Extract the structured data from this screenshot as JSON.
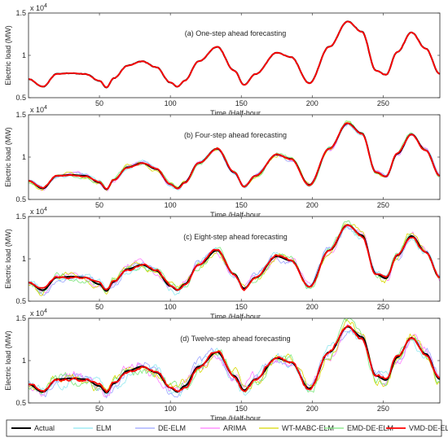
{
  "chart_data": [
    {
      "type": "line",
      "title": "(a) One-step ahead forecasting",
      "xlabel": "Time /Half-hour",
      "ylabel": "Electric load (MW)",
      "exponent_label": "x 10^4",
      "xlim": [
        0,
        290
      ],
      "ylim": [
        0.5,
        1.5
      ],
      "xticks": [
        50,
        100,
        150,
        200,
        250
      ],
      "yticks": [
        0.5,
        1,
        1.5
      ],
      "ytick_labels": [
        "0.5",
        "1",
        "1.5"
      ],
      "spread": 0.004
    },
    {
      "type": "line",
      "title": "(b) Four-step ahead forecasting",
      "xlabel": "Time /Half-hour",
      "ylabel": "Electric load (MW)",
      "exponent_label": "x 10^4",
      "xlim": [
        0,
        290
      ],
      "ylim": [
        0.5,
        1.5
      ],
      "xticks": [
        50,
        100,
        150,
        200,
        250
      ],
      "yticks": [
        0.5,
        1,
        1.5
      ],
      "ytick_labels": [
        "0.5",
        "1",
        "1.5"
      ],
      "spread": 0.03
    },
    {
      "type": "line",
      "title": "(c) Eight-step ahead forecasting",
      "xlabel": "Time /Half-hour",
      "ylabel": "Electric load (MW)",
      "exponent_label": "x 10^4",
      "xlim": [
        0,
        290
      ],
      "ylim": [
        0.5,
        1.5
      ],
      "xticks": [
        50,
        100,
        150,
        200,
        250
      ],
      "yticks": [
        0.5,
        1,
        1.5
      ],
      "ytick_labels": [
        "0.5",
        "1",
        "1.5"
      ],
      "spread": 0.06
    },
    {
      "type": "line",
      "title": "(d) Twelve-step ahead forecasting",
      "xlabel": "Time /Half-hour",
      "ylabel": "Electric load (MW)",
      "exponent_label": "x 10^4",
      "xlim": [
        0,
        290
      ],
      "ylim": [
        0.5,
        1.5
      ],
      "xticks": [
        50,
        100,
        150,
        200,
        250
      ],
      "yticks": [
        0.5,
        1,
        1.5
      ],
      "ytick_labels": [
        "0.5",
        "1",
        "1.5"
      ],
      "spread": 0.09
    }
  ],
  "actual_load_x104": {
    "x": [
      0,
      10,
      20,
      30,
      40,
      50,
      55,
      60,
      70,
      80,
      90,
      100,
      105,
      110,
      120,
      133,
      145,
      152,
      160,
      175,
      185,
      198,
      212,
      225,
      235,
      245,
      252,
      260,
      270,
      280,
      290
    ],
    "y": [
      0.72,
      0.63,
      0.78,
      0.79,
      0.78,
      0.7,
      0.62,
      0.73,
      0.88,
      0.93,
      0.86,
      0.68,
      0.63,
      0.7,
      0.93,
      1.1,
      0.82,
      0.65,
      0.78,
      1.03,
      0.98,
      0.67,
      1.1,
      1.4,
      1.28,
      0.82,
      0.77,
      1.04,
      1.27,
      1.08,
      0.78
    ]
  },
  "series": [
    {
      "name": "Actual",
      "color": "#000000",
      "width": 2.0
    },
    {
      "name": "ELM",
      "color": "#8ee8f0",
      "width": 0.8
    },
    {
      "name": "DE-ELM",
      "color": "#9aa4ff",
      "width": 0.8
    },
    {
      "name": "ARIMA",
      "color": "#ff7cff",
      "width": 0.8
    },
    {
      "name": "WT-MABC-ELM",
      "color": "#d8d800",
      "width": 0.8
    },
    {
      "name": "EMD-DE-ELM",
      "color": "#7ce87c",
      "width": 0.8
    },
    {
      "name": "VMD-DE-ELM",
      "color": "#ff0000",
      "width": 1.8
    }
  ]
}
